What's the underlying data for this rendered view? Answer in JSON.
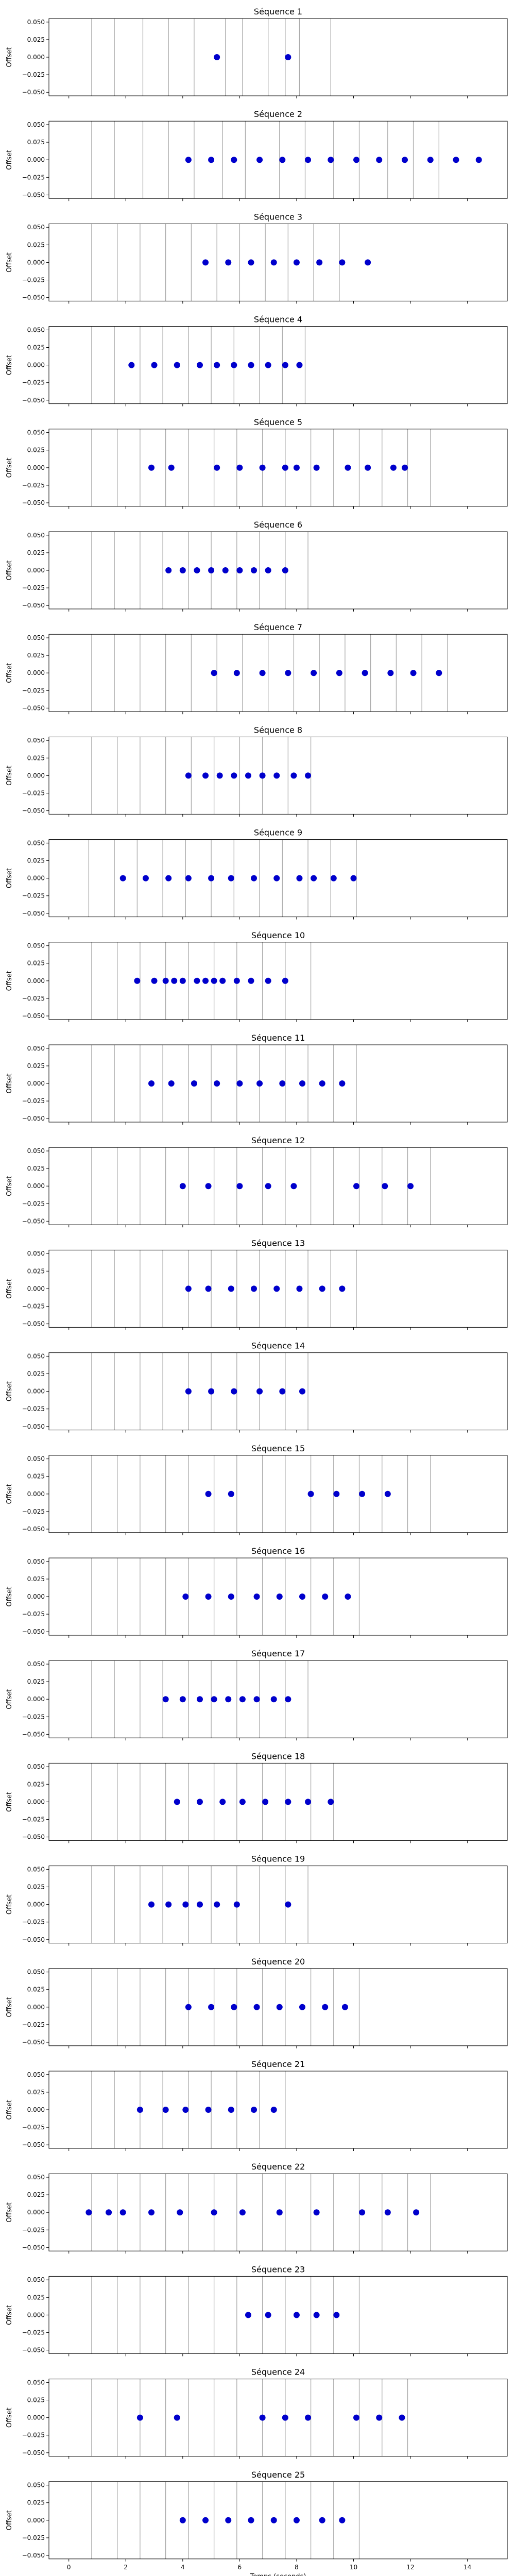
{
  "chart_data": {
    "type": "scatter",
    "xlim": [
      -0.7,
      15.4
    ],
    "ylim": [
      -0.055,
      0.055
    ],
    "x_ticks": [
      0,
      2,
      4,
      6,
      8,
      10,
      12,
      14
    ],
    "y_ticks": [
      0.05,
      0.025,
      0.0,
      -0.025,
      -0.05
    ],
    "y_tick_labels": [
      "0.050",
      "0.025",
      "0.000",
      "−0.025",
      "−0.050"
    ],
    "ylabel": "Offset",
    "xlabel": "Temps (seconds)",
    "grid": false,
    "point_color": "#0000cc",
    "vline_color": "#a9a9a9",
    "panels": [
      {
        "title": "Séquence 1",
        "points": [
          5.2,
          7.7
        ],
        "vlines": [
          0.8,
          1.6,
          2.6,
          3.5,
          4.4,
          5.5,
          6.1,
          7.0,
          7.6,
          8.1,
          9.2
        ]
      },
      {
        "title": "Séquence 2",
        "points": [
          4.2,
          5.0,
          5.8,
          6.7,
          7.5,
          8.4,
          9.2,
          10.1,
          10.9,
          11.8,
          12.7,
          13.6,
          14.4
        ],
        "vlines": [
          0.8,
          1.6,
          2.6,
          3.5,
          4.4,
          5.4,
          6.2,
          7.4,
          8.3,
          9.3,
          10.2,
          11.2,
          12.1,
          13.0
        ]
      },
      {
        "title": "Séquence 3",
        "points": [
          4.8,
          5.6,
          6.4,
          7.2,
          8.0,
          8.8,
          9.6,
          10.5
        ],
        "vlines": [
          0.8,
          1.7,
          2.5,
          3.4,
          4.3,
          5.2,
          6.0,
          6.9,
          7.7,
          8.6,
          9.5
        ]
      },
      {
        "title": "Séquence 4",
        "points": [
          2.2,
          3.0,
          3.8,
          4.6,
          5.2,
          5.8,
          6.4,
          7.0,
          7.6,
          8.1
        ],
        "vlines": [
          0.8,
          1.6,
          2.5,
          3.3,
          4.2,
          5.0,
          5.8,
          6.7,
          7.5,
          8.3
        ]
      },
      {
        "title": "Séquence 5",
        "points": [
          2.9,
          3.6,
          5.2,
          6.0,
          6.8,
          7.6,
          8.0,
          8.7,
          9.8,
          10.5,
          11.4,
          11.8
        ],
        "vlines": [
          0.8,
          1.7,
          2.5,
          3.4,
          4.2,
          5.1,
          5.9,
          6.8,
          7.6,
          8.5,
          9.3,
          10.2,
          11.0,
          11.9,
          12.7
        ]
      },
      {
        "title": "Séquence 6",
        "points": [
          3.5,
          4.0,
          4.5,
          5.0,
          5.5,
          6.0,
          6.5,
          7.0,
          7.6
        ],
        "vlines": [
          0.8,
          1.6,
          2.5,
          3.3,
          4.2,
          5.0,
          5.9,
          6.7,
          7.6,
          8.4
        ]
      },
      {
        "title": "Séquence 7",
        "points": [
          5.1,
          5.9,
          6.8,
          7.7,
          8.6,
          9.5,
          10.4,
          11.3,
          12.1,
          13.0
        ],
        "vlines": [
          0.8,
          1.6,
          2.5,
          3.4,
          4.3,
          5.2,
          6.1,
          7.0,
          7.9,
          8.8,
          9.7,
          10.6,
          11.5,
          12.4,
          13.3
        ]
      },
      {
        "title": "Séquence 8",
        "points": [
          4.2,
          4.8,
          5.3,
          5.8,
          6.3,
          6.8,
          7.3,
          7.9,
          8.4
        ],
        "vlines": [
          0.8,
          1.7,
          2.5,
          3.4,
          4.3,
          5.1,
          6.0,
          6.8,
          7.7,
          8.5
        ]
      },
      {
        "title": "Séquence 9",
        "points": [
          1.9,
          2.7,
          3.5,
          4.2,
          5.0,
          5.7,
          6.5,
          7.3,
          8.1,
          8.6,
          9.3,
          10.0
        ],
        "vlines": [
          0.7,
          1.6,
          2.4,
          3.3,
          4.1,
          5.0,
          5.8,
          6.7,
          7.5,
          8.4,
          9.2,
          10.1
        ]
      },
      {
        "title": "Séquence 10",
        "points": [
          2.4,
          3.0,
          3.4,
          3.7,
          4.0,
          4.5,
          4.8,
          5.1,
          5.4,
          5.9,
          6.4,
          7.0,
          7.6
        ],
        "vlines": [
          0.8,
          1.7,
          2.5,
          3.4,
          4.2,
          5.1,
          5.9,
          6.8,
          7.6,
          8.5
        ]
      },
      {
        "title": "Séquence 11",
        "points": [
          2.9,
          3.6,
          4.4,
          5.2,
          6.0,
          6.7,
          7.5,
          8.2,
          8.9,
          9.6
        ],
        "vlines": [
          0.8,
          1.6,
          2.5,
          3.3,
          4.2,
          5.0,
          5.9,
          6.7,
          7.6,
          8.4,
          9.3,
          10.1
        ]
      },
      {
        "title": "Séquence 12",
        "points": [
          4.0,
          4.9,
          6.0,
          7.0,
          7.9,
          10.1,
          11.1,
          12.0
        ],
        "vlines": [
          0.8,
          1.7,
          2.5,
          3.4,
          4.2,
          5.1,
          5.9,
          6.8,
          7.6,
          8.5,
          9.3,
          10.2,
          11.0,
          11.9,
          12.7
        ]
      },
      {
        "title": "Séquence 13",
        "points": [
          4.2,
          4.9,
          5.7,
          6.5,
          7.3,
          8.1,
          8.9,
          9.6
        ],
        "vlines": [
          0.8,
          1.6,
          2.5,
          3.3,
          4.2,
          5.0,
          5.9,
          6.7,
          7.6,
          8.4,
          9.2,
          10.1
        ]
      },
      {
        "title": "Séquence 14",
        "points": [
          4.2,
          5.0,
          5.8,
          6.7,
          7.5,
          8.2
        ],
        "vlines": [
          0.8,
          1.6,
          2.5,
          3.3,
          4.2,
          5.0,
          5.9,
          6.7,
          7.6,
          8.4
        ]
      },
      {
        "title": "Séquence 15",
        "points": [
          4.9,
          5.7,
          8.5,
          9.4,
          10.3,
          11.2
        ],
        "vlines": [
          0.8,
          1.7,
          2.5,
          3.4,
          4.2,
          5.1,
          5.9,
          6.8,
          7.6,
          8.5,
          9.3,
          10.2,
          11.0,
          11.9,
          12.7
        ]
      },
      {
        "title": "Séquence 16",
        "points": [
          4.1,
          4.9,
          5.7,
          6.6,
          7.4,
          8.2,
          9.0,
          9.8
        ],
        "vlines": [
          0.8,
          1.7,
          2.5,
          3.4,
          4.2,
          5.1,
          5.9,
          6.8,
          7.6,
          8.5,
          9.3,
          10.2
        ]
      },
      {
        "title": "Séquence 17",
        "points": [
          3.4,
          4.0,
          4.6,
          5.1,
          5.6,
          6.1,
          6.6,
          7.2,
          7.7
        ],
        "vlines": [
          0.8,
          1.6,
          2.5,
          3.3,
          4.2,
          5.0,
          5.9,
          6.7,
          7.6,
          8.4
        ]
      },
      {
        "title": "Séquence 18",
        "points": [
          3.8,
          4.6,
          5.4,
          6.1,
          6.9,
          7.7,
          8.4,
          9.2
        ],
        "vlines": [
          0.8,
          1.7,
          2.5,
          3.4,
          4.2,
          5.1,
          5.9,
          6.8,
          7.6,
          8.5,
          9.3
        ]
      },
      {
        "title": "Séquence 19",
        "points": [
          2.9,
          3.5,
          4.1,
          4.6,
          5.2,
          5.9,
          7.7
        ],
        "vlines": [
          0.8,
          1.6,
          2.5,
          3.3,
          4.2,
          5.0,
          5.9,
          6.7,
          7.6,
          8.4
        ]
      },
      {
        "title": "Séquence 20",
        "points": [
          4.2,
          5.0,
          5.8,
          6.6,
          7.4,
          8.2,
          9.0,
          9.7
        ],
        "vlines": [
          0.8,
          1.7,
          2.5,
          3.4,
          4.2,
          5.1,
          5.9,
          6.8,
          7.6,
          8.5,
          9.3,
          10.2
        ]
      },
      {
        "title": "Séquence 21",
        "points": [
          2.5,
          3.4,
          4.1,
          4.9,
          5.7,
          6.5,
          7.2
        ],
        "vlines": [
          0.8,
          1.6,
          2.5,
          3.3,
          4.2,
          5.0,
          5.9,
          6.7,
          7.6
        ]
      },
      {
        "title": "Séquence 22",
        "points": [
          0.7,
          1.4,
          1.9,
          2.9,
          3.9,
          5.1,
          6.1,
          7.4,
          8.7,
          10.3,
          11.2,
          12.2
        ],
        "vlines": [
          0.8,
          1.7,
          2.5,
          3.4,
          4.2,
          5.1,
          5.9,
          6.8,
          7.6,
          8.5,
          9.3,
          10.2,
          11.0,
          11.9,
          12.7
        ]
      },
      {
        "title": "Séquence 23",
        "points": [
          6.3,
          7.0,
          8.0,
          8.7,
          9.4
        ],
        "vlines": [
          0.8,
          1.7,
          2.5,
          3.4,
          4.2,
          5.1,
          5.9,
          6.8,
          7.6,
          8.5,
          9.3,
          10.2
        ]
      },
      {
        "title": "Séquence 24",
        "points": [
          2.5,
          3.8,
          6.8,
          7.6,
          8.4,
          10.1,
          10.9,
          11.7
        ],
        "vlines": [
          0.8,
          1.7,
          2.5,
          3.4,
          4.2,
          5.1,
          5.9,
          6.8,
          7.6,
          8.5,
          9.3,
          10.2,
          11.0,
          11.9
        ]
      },
      {
        "title": "Séquence 25",
        "points": [
          4.0,
          4.8,
          5.6,
          6.4,
          7.2,
          8.0,
          8.9,
          9.6
        ],
        "vlines": [
          0.8,
          1.7,
          2.5,
          3.4,
          4.2,
          5.1,
          5.9,
          6.8,
          7.6,
          8.5,
          9.3,
          10.2
        ]
      }
    ]
  }
}
